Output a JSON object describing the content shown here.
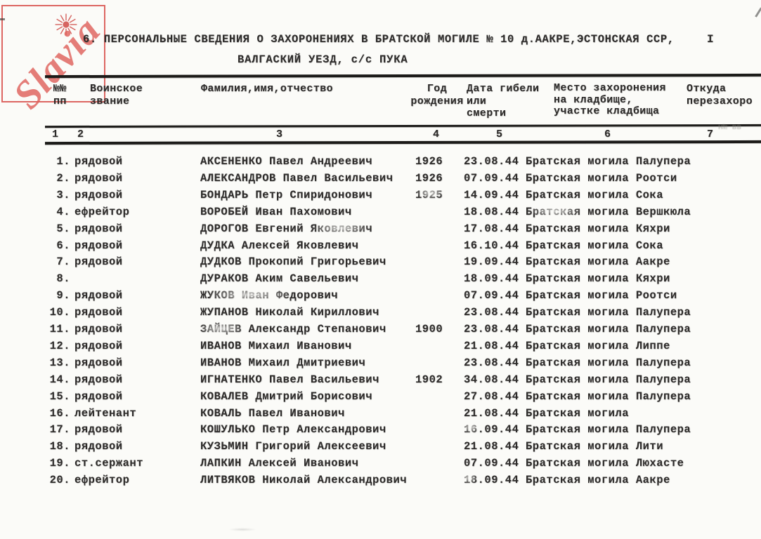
{
  "colors": {
    "ink": "#2e2c2b",
    "paper": "#fbfbf8",
    "watermark_red": "#de605c"
  },
  "watermark": {
    "text": "Slavia",
    "icon": "sun-icon"
  },
  "header": {
    "title_line1": "6. ПЕРСОНАЛЬНЫЕ СВЕДЕНИЯ О ЗАХОРОНЕНИЯХ В БРАТСКОЙ МОГИЛЕ № 10 д.ААКРЕ,ЭСТОНСКАЯ ССР,",
    "title_line2": "ВАЛГАСКИЙ УЕЗД, с/с ПУКА",
    "page_number": "I"
  },
  "table": {
    "headers": {
      "col1_lines": [
        "№№",
        "пп"
      ],
      "col2_lines": [
        "Воинское",
        "звание"
      ],
      "col3_lines": [
        "Фамилия,имя,отчество"
      ],
      "col4_lines": [
        "Год",
        "рождения"
      ],
      "col5_lines": [
        "Дата гибели",
        "или",
        "смерти"
      ],
      "col6_lines": [
        "Место захоронения",
        "на кладбище,",
        "участке кладбища"
      ],
      "col7_lines": [
        "Откуда",
        "перезахоро"
      ]
    },
    "column_numbers": [
      "1",
      "2",
      "3",
      "4",
      "5",
      "6",
      "7"
    ],
    "rows": [
      {
        "num": "1.",
        "rank": "рядовой",
        "name": "АКСЕНЕНКО Павел Андреевич",
        "year": "1926",
        "date": "23.08.44",
        "place": "Братская могила Палупера"
      },
      {
        "num": "2.",
        "rank": "рядовой",
        "name": "АЛЕКСАНДРОВ Павел Васильевич",
        "year": "1926",
        "date": "07.09.44",
        "place": "Братская могила Роотси"
      },
      {
        "num": "3.",
        "rank": "рядовой",
        "name": "БОНДАРЬ Петр Спиридонович",
        "year": "1925",
        "date": "14.09.44",
        "place": "Братская могила Сока"
      },
      {
        "num": "4.",
        "rank": "ефрейтор",
        "name": "ВОРОБЕЙ Иван Пахомович",
        "year": "",
        "date": "18.08.44",
        "place": "Братская могила Вершкюла"
      },
      {
        "num": "5.",
        "rank": "рядовой",
        "name": "ДОРОГОВ Евгений Яковлевич",
        "year": "",
        "date": "17.08.44",
        "place": "Братская могила Кяхри"
      },
      {
        "num": "6.",
        "rank": "рядовой",
        "name": "ДУДКА Алексей Яковлевич",
        "year": "",
        "date": "16.10.44",
        "place": "Братская могила Сока"
      },
      {
        "num": "7.",
        "rank": "рядовой",
        "name": "ДУДКОВ Прокопий Григорьевич",
        "year": "",
        "date": "19.09.44",
        "place": "Братская могила Аакре"
      },
      {
        "num": "8.",
        "rank": "",
        "name": "ДУРАКОВ Аким Савельевич",
        "year": "",
        "date": "18.09.44",
        "place": "Братская могила Кяхри"
      },
      {
        "num": "9.",
        "rank": "рядовой",
        "name": "ЖУКОВ Иван Федорович",
        "year": "",
        "date": "07.09.44",
        "place": "Братская могила Роотси"
      },
      {
        "num": "10.",
        "rank": "рядовой",
        "name": "ЖУПАНОВ Николай Кириллович",
        "year": "",
        "date": "23.08.44",
        "place": "Братская могила Палупера"
      },
      {
        "num": "11.",
        "rank": "рядовой",
        "name": "ЗАЙЦЕВ Александр Степанович",
        "year": "1900",
        "date": "23.08.44",
        "place": "Братская могила Палупера"
      },
      {
        "num": "12.",
        "rank": "рядовой",
        "name": "ИВАНОВ Михаил Иванович",
        "year": "",
        "date": "21.08.44",
        "place": "Братская могила Липпе"
      },
      {
        "num": "13.",
        "rank": "рядовой",
        "name": "ИВАНОВ Михаил Дмитриевич",
        "year": "",
        "date": "23.08.44",
        "place": "Братская могила Палупера"
      },
      {
        "num": "14.",
        "rank": "рядовой",
        "name": "ИГНАТЕНКО Павел Васильевич",
        "year": "1902",
        "date": "34.08.44",
        "place": "Братская могила Палупера"
      },
      {
        "num": "15.",
        "rank": "рядовой",
        "name": "КОВАЛЕВ Дмитрий Борисович",
        "year": "",
        "date": "27.08.44",
        "place": "Братская могила Палупера"
      },
      {
        "num": "16.",
        "rank": "лейтенант",
        "name": "КОВАЛЬ Павел Иванович",
        "year": "",
        "date": "21.08.44",
        "place": "Братская могила"
      },
      {
        "num": "17.",
        "rank": "рядовой",
        "name": "КОШУЛЬКО Петр Александрович",
        "year": "",
        "date": "16.09.44",
        "place": "Братская могила Палупера"
      },
      {
        "num": "18.",
        "rank": "рядовой",
        "name": "КУЗЬМИН Григорий Алексеевич",
        "year": "",
        "date": "21.08.44",
        "place": "Братская могила Лити"
      },
      {
        "num": "19.",
        "rank": "ст.сержант",
        "name": "ЛАПКИН Алексей Иванович",
        "year": "",
        "date": "07.09.44",
        "place": "Братская могила Люхасте"
      },
      {
        "num": "20.",
        "rank": "ефрейтор",
        "name": "ЛИТВЯКОВ Николай Александрович",
        "year": "",
        "date": "18.09.44",
        "place": "Братская могила Аакре"
      }
    ]
  }
}
